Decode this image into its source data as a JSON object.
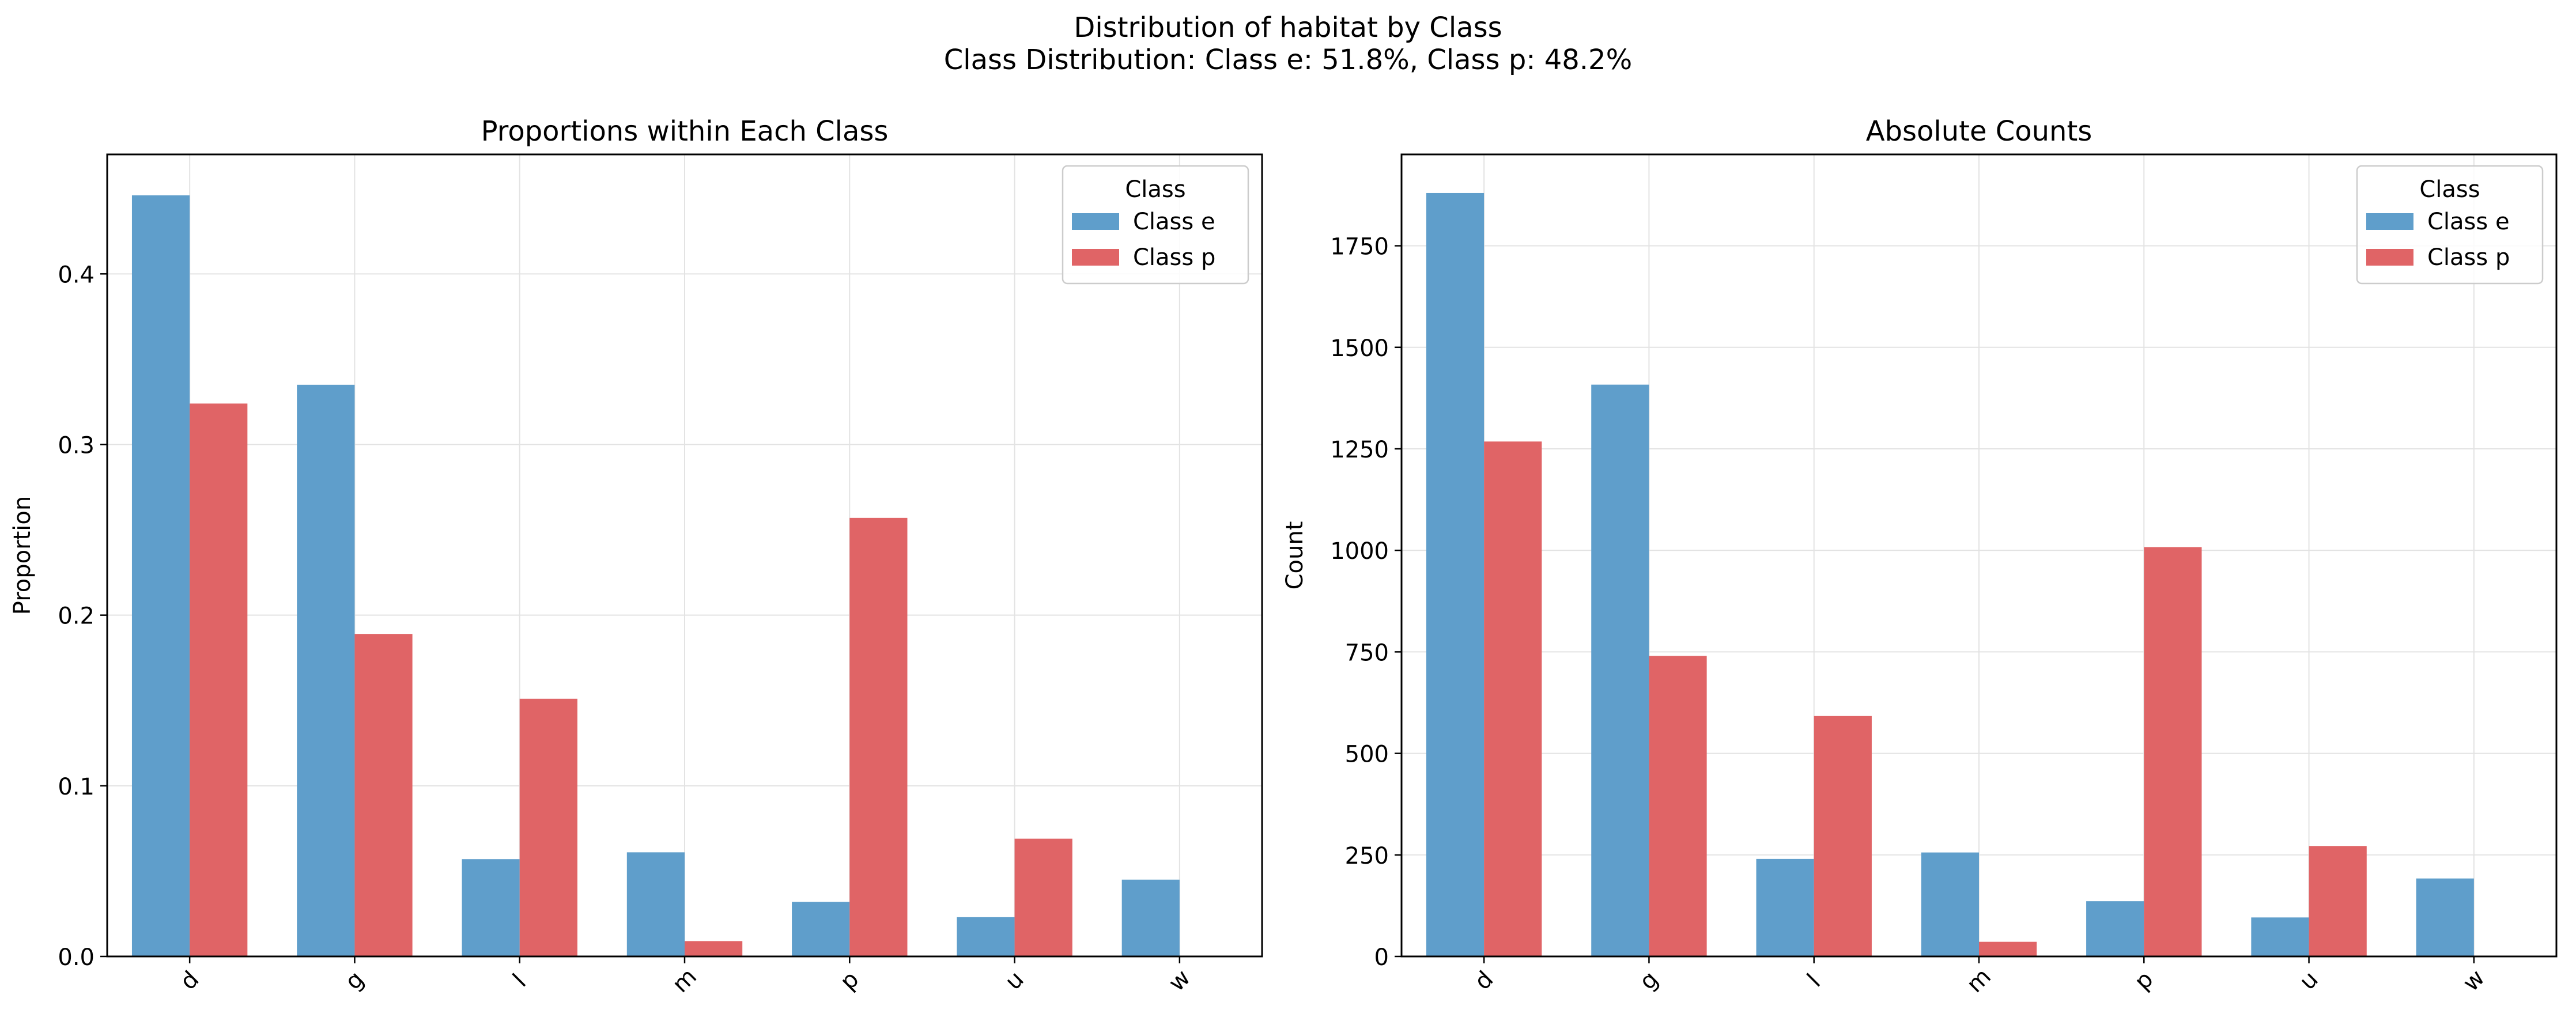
{
  "figure": {
    "suptitle_line1": "Distribution of habitat by Class",
    "suptitle_line2": "Class Distribution: Class e: 51.8%, Class p: 48.2%"
  },
  "colors": {
    "class_e": "#5f9ecb",
    "class_p": "#e06466"
  },
  "chart_data": [
    {
      "type": "bar",
      "title": "Proportions within Each Class",
      "xlabel": "",
      "ylabel": "Proportion",
      "categories": [
        "d",
        "g",
        "l",
        "m",
        "p",
        "u",
        "w"
      ],
      "ylim": [
        0,
        0.47
      ],
      "yticks": [
        0.0,
        0.1,
        0.2,
        0.3,
        0.4
      ],
      "ytick_labels": [
        "0.0",
        "0.1",
        "0.2",
        "0.3",
        "0.4"
      ],
      "grid": true,
      "legend_title": "Class",
      "legend_position": "top-right",
      "series": [
        {
          "name": "Class e",
          "values": [
            0.446,
            0.335,
            0.057,
            0.061,
            0.032,
            0.023,
            0.045
          ]
        },
        {
          "name": "Class p",
          "values": [
            0.324,
            0.189,
            0.151,
            0.009,
            0.257,
            0.069,
            0.0
          ]
        }
      ]
    },
    {
      "type": "bar",
      "title": "Absolute Counts",
      "xlabel": "",
      "ylabel": "Count",
      "categories": [
        "d",
        "g",
        "l",
        "m",
        "p",
        "u",
        "w"
      ],
      "ylim": [
        0,
        1975
      ],
      "yticks": [
        0,
        250,
        500,
        750,
        1000,
        1250,
        1500,
        1750
      ],
      "ytick_labels": [
        "0",
        "250",
        "500",
        "750",
        "1000",
        "1250",
        "1500",
        "1750"
      ],
      "grid": true,
      "legend_title": "Class",
      "legend_position": "top-right",
      "series": [
        {
          "name": "Class e",
          "values": [
            1880,
            1408,
            240,
            256,
            136,
            96,
            192
          ]
        },
        {
          "name": "Class p",
          "values": [
            1268,
            740,
            592,
            36,
            1008,
            272,
            0
          ]
        }
      ]
    }
  ]
}
